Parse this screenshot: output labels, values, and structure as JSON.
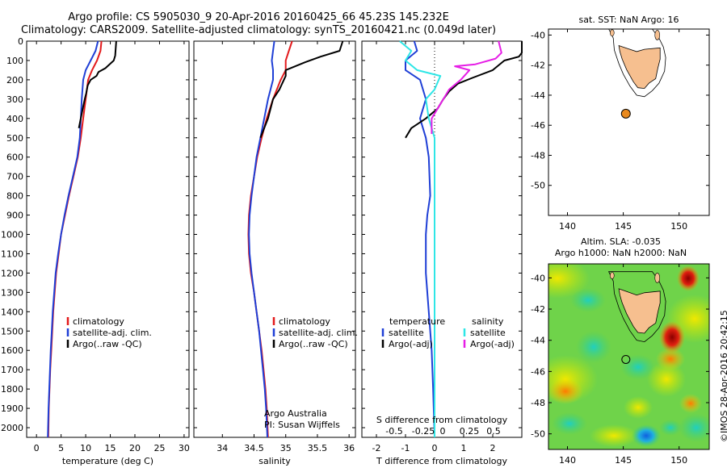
{
  "header": {
    "title_line1": "Argo profile: CS 5905030_9 20-Apr-2016 20160425_66 45.23S 145.232E",
    "title_line2": "Climatology: CARS2009. Satellite-adjusted climatology: synTS_20160421.nc (0.049d later)"
  },
  "stamp": "©IMOS 28-Apr-2016 20:42:15",
  "colors": {
    "climatology": "#e31a1c",
    "satellite": "#1f3fd6",
    "argo": "#000000",
    "cyan": "#2ee6e6",
    "magenta": "#e61ee6",
    "land": "#f6bf8f",
    "argo_dot": "#e8891e"
  },
  "chart_data": [
    {
      "type": "line",
      "xlabel": "temperature (deg C)",
      "xticks": [
        0,
        5,
        10,
        15,
        20,
        25,
        30
      ],
      "xlim": [
        -2,
        31
      ],
      "ylim": [
        0,
        2050
      ],
      "yticks": [
        0,
        100,
        200,
        300,
        400,
        500,
        600,
        700,
        800,
        900,
        1000,
        1100,
        1200,
        1300,
        1400,
        1500,
        1600,
        1700,
        1800,
        1900,
        2000
      ],
      "legend_position": "lower-right",
      "series": [
        {
          "name": "climatology",
          "color": "#e31a1c",
          "points": [
            [
              13.2,
              0
            ],
            [
              13.0,
              50
            ],
            [
              12.3,
              100
            ],
            [
              11.3,
              150
            ],
            [
              10.5,
              200
            ],
            [
              10.0,
              300
            ],
            [
              9.5,
              400
            ],
            [
              9.0,
              500
            ],
            [
              8.4,
              600
            ],
            [
              7.5,
              700
            ],
            [
              6.6,
              800
            ],
            [
              5.8,
              900
            ],
            [
              5.0,
              1000
            ],
            [
              4.5,
              1100
            ],
            [
              4.0,
              1200
            ],
            [
              3.7,
              1300
            ],
            [
              3.4,
              1400
            ],
            [
              3.2,
              1500
            ],
            [
              3.0,
              1600
            ],
            [
              2.8,
              1700
            ],
            [
              2.65,
              1800
            ],
            [
              2.5,
              1900
            ],
            [
              2.4,
              2050
            ]
          ]
        },
        {
          "name": "satellite-adj. clim.",
          "color": "#1f3fd6",
          "points": [
            [
              12.5,
              0
            ],
            [
              12.0,
              50
            ],
            [
              11.0,
              100
            ],
            [
              10.0,
              150
            ],
            [
              9.5,
              200
            ],
            [
              9.2,
              300
            ],
            [
              9.0,
              400
            ],
            [
              8.8,
              500
            ],
            [
              8.3,
              600
            ],
            [
              7.4,
              700
            ],
            [
              6.5,
              800
            ],
            [
              5.7,
              900
            ],
            [
              5.0,
              1000
            ],
            [
              4.4,
              1100
            ],
            [
              3.9,
              1200
            ],
            [
              3.6,
              1300
            ],
            [
              3.3,
              1400
            ],
            [
              3.1,
              1500
            ],
            [
              2.9,
              1600
            ],
            [
              2.75,
              1700
            ],
            [
              2.6,
              1800
            ],
            [
              2.45,
              1900
            ],
            [
              2.3,
              2050
            ]
          ]
        },
        {
          "name": "Argo(..raw -QC)",
          "color": "#000000",
          "points": [
            [
              16.2,
              0
            ],
            [
              16.1,
              40
            ],
            [
              16.0,
              75
            ],
            [
              15.7,
              100
            ],
            [
              14.0,
              140
            ],
            [
              12.6,
              160
            ],
            [
              12.2,
              180
            ],
            [
              11.0,
              200
            ],
            [
              10.4,
              230
            ],
            [
              10.1,
              270
            ],
            [
              9.8,
              300
            ],
            [
              9.4,
              350
            ],
            [
              9.0,
              400
            ],
            [
              8.6,
              450
            ]
          ]
        }
      ]
    },
    {
      "type": "line",
      "xlabel": "salinity",
      "xticks": [
        34,
        34.5,
        35,
        35.5,
        36
      ],
      "xlim": [
        33.55,
        36.1
      ],
      "ylim": [
        0,
        2050
      ],
      "legend_position": "lower-right",
      "annotations": [
        "Argo Australia",
        "PI: Susan Wijffels"
      ],
      "series": [
        {
          "name": "climatology",
          "color": "#e31a1c",
          "points": [
            [
              35.1,
              0
            ],
            [
              35.05,
              50
            ],
            [
              35.0,
              100
            ],
            [
              35.0,
              150
            ],
            [
              34.92,
              200
            ],
            [
              34.8,
              300
            ],
            [
              34.7,
              400
            ],
            [
              34.62,
              500
            ],
            [
              34.55,
              600
            ],
            [
              34.5,
              700
            ],
            [
              34.45,
              800
            ],
            [
              34.42,
              900
            ],
            [
              34.41,
              1000
            ],
            [
              34.42,
              1100
            ],
            [
              34.45,
              1200
            ],
            [
              34.5,
              1300
            ],
            [
              34.54,
              1400
            ],
            [
              34.58,
              1500
            ],
            [
              34.62,
              1600
            ],
            [
              34.65,
              1700
            ],
            [
              34.68,
              1800
            ],
            [
              34.7,
              1900
            ],
            [
              34.72,
              2050
            ]
          ]
        },
        {
          "name": "satellite-adj. clim.",
          "color": "#1f3fd6",
          "points": [
            [
              34.82,
              0
            ],
            [
              34.8,
              50
            ],
            [
              34.78,
              100
            ],
            [
              34.8,
              150
            ],
            [
              34.8,
              200
            ],
            [
              34.72,
              300
            ],
            [
              34.66,
              400
            ],
            [
              34.6,
              500
            ],
            [
              34.54,
              600
            ],
            [
              34.5,
              700
            ],
            [
              34.46,
              800
            ],
            [
              34.43,
              900
            ],
            [
              34.42,
              1000
            ],
            [
              34.43,
              1100
            ],
            [
              34.46,
              1200
            ],
            [
              34.5,
              1300
            ],
            [
              34.54,
              1400
            ],
            [
              34.58,
              1500
            ],
            [
              34.61,
              1600
            ],
            [
              34.64,
              1700
            ],
            [
              34.67,
              1800
            ],
            [
              34.69,
              1900
            ],
            [
              34.71,
              2050
            ]
          ]
        },
        {
          "name": "Argo(..raw -QC)",
          "color": "#000000",
          "points": [
            [
              35.9,
              0
            ],
            [
              35.85,
              50
            ],
            [
              35.55,
              80
            ],
            [
              35.3,
              110
            ],
            [
              35.0,
              150
            ],
            [
              35.0,
              180
            ],
            [
              34.9,
              250
            ],
            [
              34.8,
              300
            ],
            [
              34.72,
              400
            ],
            [
              34.6,
              500
            ]
          ]
        }
      ]
    },
    {
      "type": "line",
      "xlabel": "T difference from climatology",
      "xticks": [
        -2,
        -1,
        0,
        1,
        2
      ],
      "xlim": [
        -2.5,
        3.0
      ],
      "top_axis_label": "S difference from climatology",
      "top_xticks": [
        "-0.5",
        "-0.25",
        "0",
        "0.25",
        "0.5"
      ],
      "ylim": [
        0,
        2050
      ],
      "legend_position": "lower-right",
      "legend_headers": [
        "temperature",
        "salinity"
      ],
      "series": [
        {
          "name": "satellite",
          "group": "temperature",
          "color": "#1f3fd6",
          "points": [
            [
              -0.7,
              0
            ],
            [
              -0.6,
              50
            ],
            [
              -1.0,
              100
            ],
            [
              -1.0,
              150
            ],
            [
              -0.5,
              200
            ],
            [
              -0.3,
              300
            ],
            [
              -0.5,
              400
            ],
            [
              -0.3,
              500
            ],
            [
              -0.2,
              600
            ],
            [
              -0.15,
              800
            ],
            [
              -0.25,
              900
            ],
            [
              -0.3,
              1000
            ],
            [
              -0.3,
              1200
            ],
            [
              -0.2,
              1400
            ],
            [
              -0.1,
              1600
            ],
            [
              -0.05,
              1800
            ],
            [
              0.0,
              2050
            ]
          ]
        },
        {
          "name": "Argo(-adj)",
          "group": "temperature",
          "color": "#000000",
          "points": [
            [
              3.0,
              0
            ],
            [
              3.0,
              60
            ],
            [
              2.9,
              80
            ],
            [
              2.4,
              100
            ],
            [
              2.0,
              150
            ],
            [
              1.3,
              190
            ],
            [
              0.8,
              220
            ],
            [
              0.5,
              260
            ],
            [
              0.3,
              300
            ],
            [
              0.1,
              350
            ],
            [
              -0.3,
              400
            ],
            [
              -0.8,
              450
            ],
            [
              -1.0,
              500
            ]
          ]
        },
        {
          "name": "satellite",
          "group": "salinity",
          "color": "#2ee6e6",
          "points": [
            [
              -1.2,
              0
            ],
            [
              -0.8,
              50
            ],
            [
              -1.0,
              100
            ],
            [
              -0.6,
              150
            ],
            [
              0.2,
              180
            ],
            [
              0.0,
              250
            ],
            [
              -0.3,
              300
            ],
            [
              -0.2,
              400
            ],
            [
              0.0,
              500
            ],
            [
              0.0,
              800
            ],
            [
              0.0,
              1000
            ],
            [
              0.0,
              2050
            ]
          ]
        },
        {
          "name": "Argo(-adj)",
          "group": "salinity",
          "color": "#e61ee6",
          "points": [
            [
              2.2,
              0
            ],
            [
              2.3,
              60
            ],
            [
              2.1,
              90
            ],
            [
              1.4,
              120
            ],
            [
              0.7,
              130
            ],
            [
              1.2,
              150
            ],
            [
              0.9,
              200
            ],
            [
              0.5,
              250
            ],
            [
              0.3,
              300
            ],
            [
              0.1,
              350
            ],
            [
              -0.1,
              400
            ],
            [
              -0.1,
              480
            ]
          ]
        }
      ],
      "reference_line": {
        "x": 0,
        "style": "dotted"
      }
    },
    {
      "type": "map",
      "title": "sat. SST: NaN Argo: 16",
      "xlim": [
        138.3,
        152.7
      ],
      "ylim": [
        -52,
        -39.6
      ],
      "xticks": [
        140,
        145,
        150
      ],
      "yticks": [
        -40,
        -42,
        -44,
        -46,
        -48,
        -50
      ],
      "argo_position": [
        145.232,
        -45.23
      ],
      "background": "#ffffff"
    },
    {
      "type": "heatmap",
      "title_line1": "Altim. SLA: -0.035",
      "title_line2": "Argo h1000: NaN h2000: NaN",
      "xlim": [
        138.3,
        152.7
      ],
      "ylim": [
        -51,
        -39.1
      ],
      "xticks": [
        140,
        145,
        150
      ],
      "yticks": [
        -40,
        -42,
        -44,
        -46,
        -48,
        -50
      ],
      "argo_position": [
        145.232,
        -45.23
      ],
      "colormap": "jet"
    }
  ]
}
